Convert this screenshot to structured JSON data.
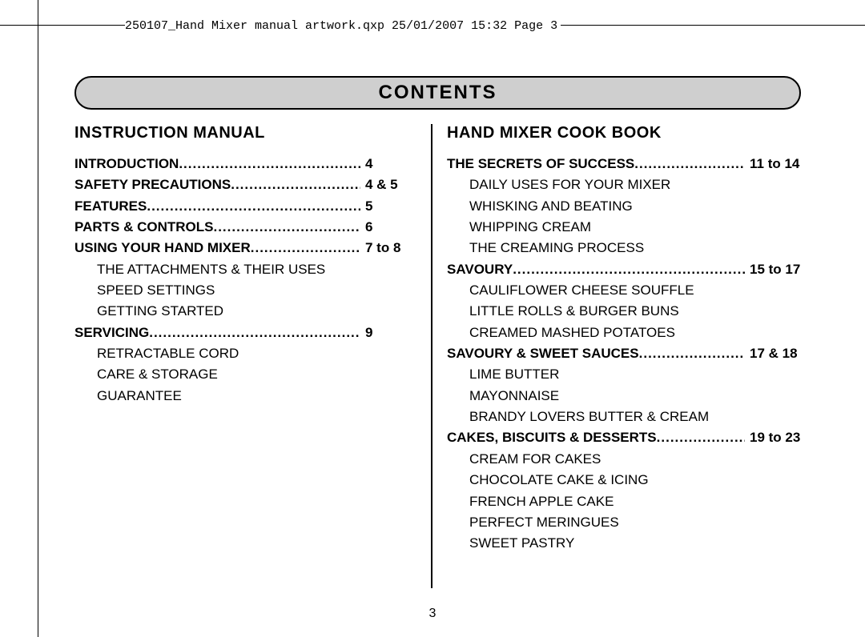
{
  "slug": "250107_Hand Mixer manual artwork.qxp  25/01/2007  15:32  Page 3",
  "page_number": "3",
  "header": "CONTENTS",
  "left": {
    "title": "INSTRUCTION MANUAL",
    "entries": [
      {
        "label": "INTRODUCTION",
        "page": "4",
        "bold": true
      },
      {
        "label": "SAFETY PRECAUTIONS",
        "page": "4 & 5",
        "bold": true
      },
      {
        "label": "FEATURES",
        "page": "5",
        "bold": true
      },
      {
        "label": "PARTS & CONTROLS",
        "page": "6",
        "bold": true
      },
      {
        "label": "USING YOUR HAND MIXER",
        "page": "7 to 8",
        "bold": true,
        "subs": [
          "THE ATTACHMENTS & THEIR USES",
          "SPEED SETTINGS",
          "GETTING STARTED"
        ]
      },
      {
        "label": "SERVICING",
        "page": "9",
        "bold": true,
        "subs": [
          "RETRACTABLE CORD",
          "CARE & STORAGE",
          "GUARANTEE"
        ]
      }
    ]
  },
  "right": {
    "title": "HAND MIXER COOK BOOK",
    "entries": [
      {
        "label": "THE SECRETS OF SUCCESS",
        "page": "11 to 14",
        "bold": true,
        "subs": [
          "DAILY USES FOR YOUR MIXER",
          "WHISKING AND BEATING",
          "WHIPPING CREAM",
          "THE CREAMING PROCESS"
        ]
      },
      {
        "label": "SAVOURY",
        "page": "15 to 17",
        "bold": true,
        "subs": [
          "CAULIFLOWER CHEESE SOUFFLE",
          "LITTLE ROLLS & BURGER BUNS",
          "CREAMED MASHED POTATOES"
        ]
      },
      {
        "label": "SAVOURY & SWEET SAUCES",
        "page": "17 & 18",
        "bold": true,
        "subs": [
          "LIME BUTTER",
          "MAYONNAISE",
          "BRANDY LOVERS BUTTER & CREAM"
        ]
      },
      {
        "label": "CAKES, BISCUITS & DESSERTS",
        "page": "19 to 23",
        "bold": true,
        "subs": [
          "CREAM FOR CAKES",
          "CHOCOLATE CAKE & ICING",
          "FRENCH APPLE CAKE",
          "PERFECT MERINGUES",
          "SWEET PASTRY"
        ]
      }
    ]
  },
  "colors": {
    "header_bg": "#cfcfcf",
    "border": "#000000",
    "text": "#000000",
    "page_bg": "#ffffff"
  }
}
